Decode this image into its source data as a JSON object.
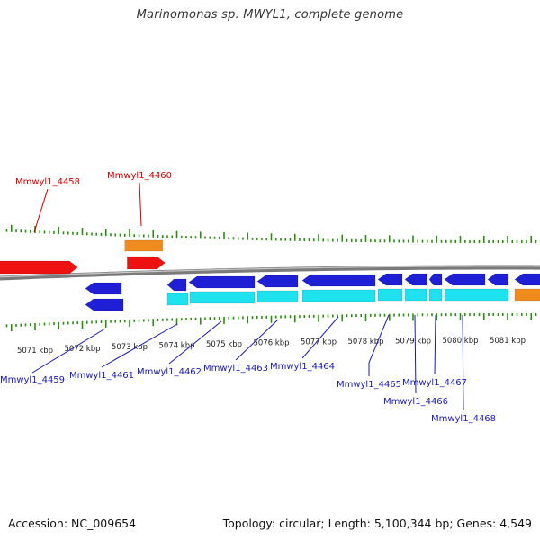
{
  "title": "Marinomonas sp. MWYL1, complete genome",
  "footer": {
    "accession": "Accession: NC_009654",
    "summary": "Topology: circular; Length: 5,100,344 bp; Genes: 4,549"
  },
  "colors": {
    "forward_gene": "#ee1111",
    "forward_rna": "#f08c1e",
    "reverse_gene": "#1f1fd6",
    "reverse_cds": "#1ee2ee",
    "reverse_rna": "#f08c1e",
    "tick": "#2a8a12",
    "backbone": "#7a7a7a",
    "forward_label": "#cc0000",
    "reverse_label": "#1a1aaa"
  },
  "scale": {
    "unit": "kbp",
    "ticks": [
      {
        "kb": 5071,
        "label": "5071 kbp"
      },
      {
        "kb": 5072,
        "label": "5072 kbp"
      },
      {
        "kb": 5073,
        "label": "5073 kbp"
      },
      {
        "kb": 5074,
        "label": "5074 kbp"
      },
      {
        "kb": 5075,
        "label": "5075 kbp"
      },
      {
        "kb": 5076,
        "label": "5076 kbp"
      },
      {
        "kb": 5077,
        "label": "5077 kbp"
      },
      {
        "kb": 5078,
        "label": "5078 kbp"
      },
      {
        "kb": 5079,
        "label": "5079 kbp"
      },
      {
        "kb": 5080,
        "label": "5080 kbp"
      },
      {
        "kb": 5081,
        "label": "5081 kbp"
      }
    ]
  },
  "genes": [
    {
      "label": "Mmwyl1_4458",
      "strand": "+",
      "start_kb": 5069.5,
      "end_kb": 5071.3
    },
    {
      "label": "Mmwyl1_4460",
      "strand": "+",
      "start_kb": 5072.3,
      "end_kb": 5073.1,
      "rna": true
    },
    {
      "label": "Mmwyl1_4459",
      "strand": "-",
      "start_kb": 5071.5,
      "end_kb": 5072.3
    },
    {
      "label": "Mmwyl1_4461",
      "strand": "-",
      "start_kb": 5072.3,
      "end_kb": 5073.9
    },
    {
      "label": "Mmwyl1_4462",
      "strand": "-",
      "start_kb": 5073.9,
      "end_kb": 5075.3
    },
    {
      "label": "Mmwyl1_4463",
      "strand": "-",
      "start_kb": 5075.3,
      "end_kb": 5076.2
    },
    {
      "label": "Mmwyl1_4464",
      "strand": "-",
      "start_kb": 5076.2,
      "end_kb": 5077.8
    },
    {
      "label": "Mmwyl1_4465",
      "strand": "-",
      "start_kb": 5077.8,
      "end_kb": 5078.4
    },
    {
      "label": "Mmwyl1_4466",
      "strand": "-",
      "start_kb": 5078.4,
      "end_kb": 5079.0
    },
    {
      "label": "Mmwyl1_4467",
      "strand": "-",
      "start_kb": 5079.0,
      "end_kb": 5079.3
    },
    {
      "label": "Mmwyl1_4468",
      "strand": "-",
      "start_kb": 5079.3,
      "end_kb": 5080.2
    }
  ]
}
